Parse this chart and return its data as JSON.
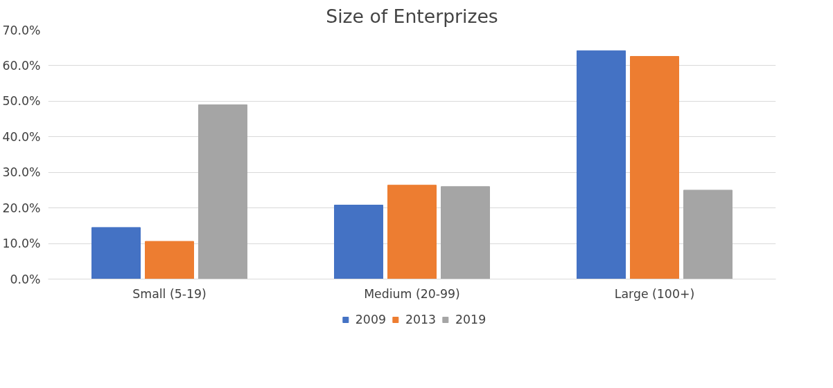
{
  "chart_data": {
    "type": "bar",
    "title": "Size of Enterprizes",
    "categories": [
      "Small (5-19)",
      "Medium (20-99)",
      "Large (100+)"
    ],
    "series": [
      {
        "name": "2009",
        "color": "#4472c4",
        "values": [
          14.5,
          20.8,
          64.2
        ]
      },
      {
        "name": "2013",
        "color": "#ed7d31",
        "values": [
          10.6,
          26.4,
          62.6
        ]
      },
      {
        "name": "2019",
        "color": "#a5a5a5",
        "values": [
          49.0,
          26.0,
          25.0
        ]
      }
    ],
    "ylim": [
      0,
      70
    ],
    "yticks": [
      {
        "value": 0,
        "label": "0.0%"
      },
      {
        "value": 10,
        "label": "10.0%"
      },
      {
        "value": 20,
        "label": "20.0%"
      },
      {
        "value": 30,
        "label": "30.0%"
      },
      {
        "value": 40,
        "label": "40.0%"
      },
      {
        "value": 50,
        "label": "50.0%"
      },
      {
        "value": 60,
        "label": "60.0%"
      },
      {
        "value": 70,
        "label": "70.0%"
      }
    ],
    "grid": "y",
    "legend": "bottom"
  }
}
